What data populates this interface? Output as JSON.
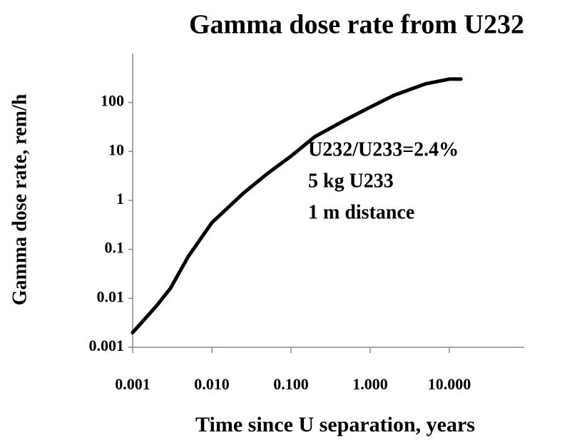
{
  "chart_data": {
    "type": "line",
    "title": "Gamma dose rate from U232",
    "xlabel": "Time since U separation, years",
    "ylabel": "Gamma dose rate, rem/h",
    "annotations": [
      "U232/U233=2.4%",
      "5 kg U233",
      "1 m distance"
    ],
    "x": [
      0.001,
      0.002,
      0.003,
      0.005,
      0.01,
      0.025,
      0.05,
      0.1,
      0.2,
      0.5,
      1,
      2,
      5,
      10,
      14
    ],
    "series": [
      {
        "name": "Gamma dose rate",
        "color": "#000000",
        "values": [
          0.002,
          0.007,
          0.016,
          0.07,
          0.35,
          1.4,
          3.5,
          8,
          20,
          45,
          80,
          140,
          240,
          300,
          300
        ]
      }
    ],
    "xlim": [
      0.001,
      100
    ],
    "ylim": [
      0.001,
      1000
    ],
    "xticks": [
      0.001,
      {
        "value": 0.01,
        "label": "0.010"
      },
      {
        "value": 0.1,
        "label": "0.100"
      },
      {
        "value": 1,
        "label": "1.000"
      },
      {
        "value": 10,
        "label": "10.000"
      }
    ],
    "yticks": [
      0.001,
      0.01,
      0.1,
      1,
      10,
      100
    ],
    "xscale": "log",
    "yscale": "log",
    "grid": false
  }
}
